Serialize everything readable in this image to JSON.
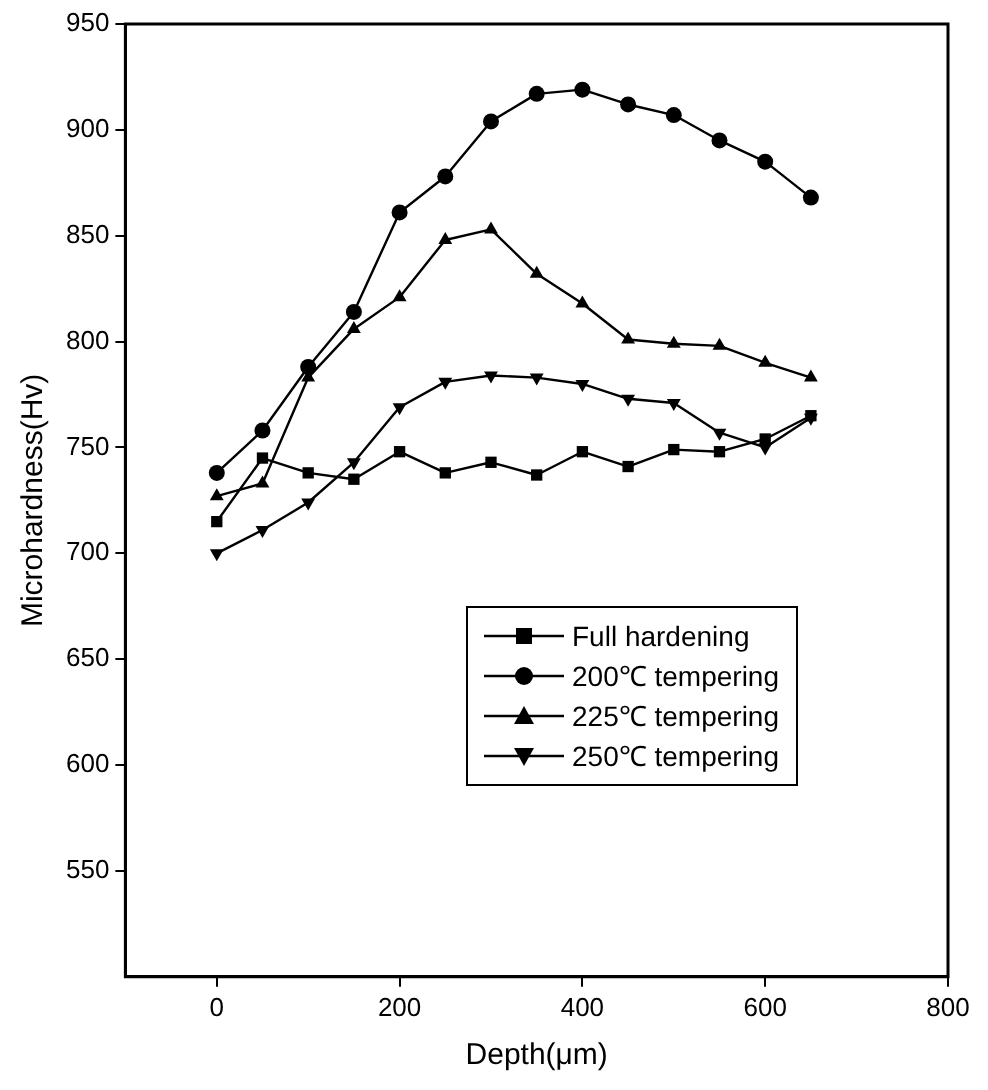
{
  "chart_data": {
    "type": "line",
    "xlabel": "Depth(μm)",
    "ylabel": "Microhardness(Hv)",
    "x": [
      0,
      50,
      100,
      150,
      200,
      250,
      300,
      350,
      400,
      450,
      500,
      550,
      600,
      650
    ],
    "xlim": [
      -100,
      800
    ],
    "xticks": [
      0,
      200,
      400,
      600,
      800
    ],
    "ylim": [
      500,
      950
    ],
    "yticks": [
      550,
      600,
      650,
      700,
      750,
      800,
      850,
      900,
      950
    ],
    "grid": false,
    "legend": "bottom right",
    "line_style": "solid",
    "series": [
      {
        "name": "Full hardening",
        "color": "#000000",
        "marker": "square",
        "values": [
          715,
          745,
          738,
          735,
          748,
          738,
          743,
          737,
          748,
          741,
          749,
          748,
          754,
          765
        ]
      },
      {
        "name": "200℃ tempering",
        "color": "#000000",
        "marker": "circle",
        "values": [
          738,
          758,
          788,
          814,
          861,
          878,
          904,
          917,
          919,
          912,
          907,
          895,
          885,
          868
        ]
      },
      {
        "name": "225℃ tempering",
        "color": "#000000",
        "marker": "triangle",
        "values": [
          727,
          733,
          783,
          806,
          821,
          848,
          853,
          832,
          818,
          801,
          799,
          798,
          790,
          783
        ]
      },
      {
        "name": "250℃ tempering",
        "color": "#000000",
        "marker": "triangle-down",
        "values": [
          700,
          711,
          724,
          743,
          769,
          781,
          784,
          783,
          780,
          773,
          771,
          757,
          750,
          764
        ]
      }
    ]
  }
}
